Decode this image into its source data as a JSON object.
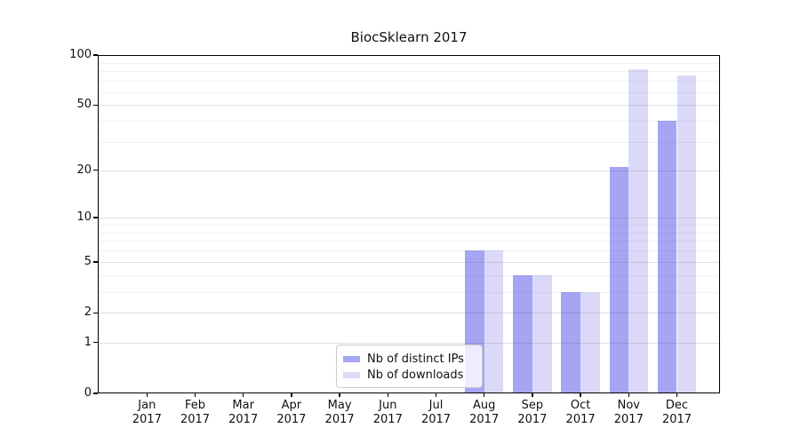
{
  "chart_data": {
    "type": "bar",
    "title": "BiocSklearn 2017",
    "categories": [
      "Jan",
      "Feb",
      "Mar",
      "Apr",
      "May",
      "Jun",
      "Jul",
      "Aug",
      "Sep",
      "Oct",
      "Nov",
      "Dec"
    ],
    "x_tick_year": "2017",
    "series": [
      {
        "name": "Nb of distinct IPs",
        "color": "#a5a5f5",
        "values": [
          0,
          0,
          0,
          0,
          0,
          0,
          0,
          6,
          4,
          3,
          21,
          40
        ]
      },
      {
        "name": "Nb of downloads",
        "color": "#dadaf8",
        "values": [
          0,
          0,
          0,
          0,
          0,
          0,
          0,
          6,
          4,
          3,
          82,
          75
        ]
      }
    ],
    "yscale": "log1p",
    "ylim": [
      0,
      100
    ],
    "y_major_ticks": [
      0,
      1,
      2,
      5,
      10,
      20,
      50,
      100
    ],
    "y_minor_gridlines": [
      3,
      4,
      6,
      7,
      8,
      9,
      30,
      40,
      60,
      70,
      80,
      90
    ],
    "grid": true,
    "legend": {
      "position": "lower center"
    }
  }
}
